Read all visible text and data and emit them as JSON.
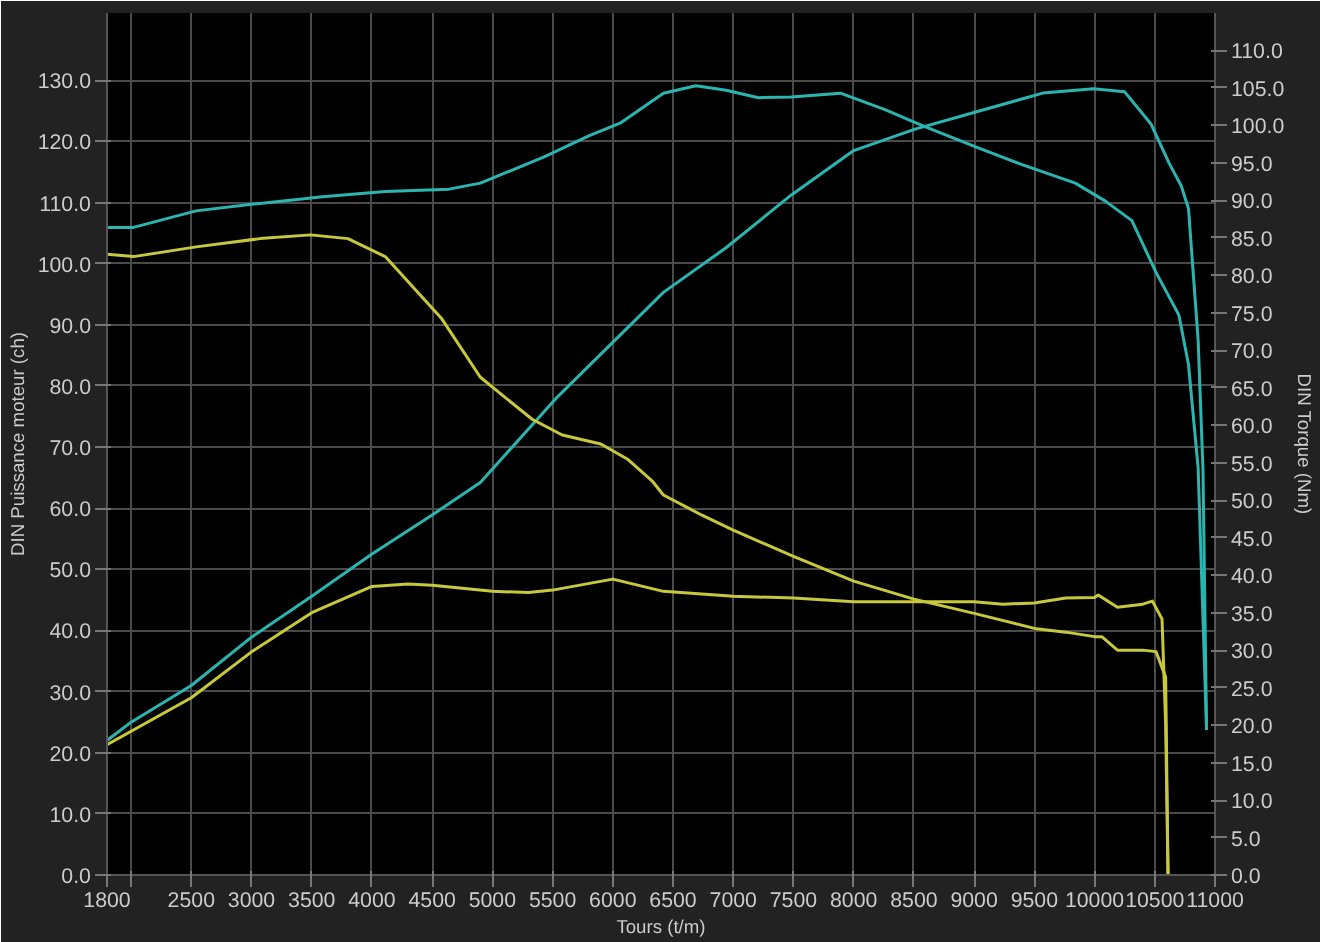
{
  "chart_data": {
    "type": "line",
    "xlabel": "Tours (t/m)",
    "ylabel": "DIN Puissance moteur (ch)",
    "y2label": "DIN Torque (Nm)",
    "xlim": [
      1800,
      11000
    ],
    "ylim": [
      0,
      141
    ],
    "y2lim": [
      0,
      115
    ],
    "xticks": [
      1800,
      {
        "value": 2000,
        "label": null
      },
      2500,
      3000,
      3500,
      4000,
      4500,
      5000,
      5500,
      6000,
      6500,
      7000,
      7500,
      8000,
      8500,
      9000,
      9500,
      10000,
      10500,
      11000
    ],
    "yticks": [
      {
        "value": 0,
        "label": "0.0"
      },
      {
        "value": 10,
        "label": "10.0"
      },
      {
        "value": 20,
        "label": "20.0"
      },
      {
        "value": 30,
        "label": "30.0"
      },
      {
        "value": 40,
        "label": "40.0"
      },
      {
        "value": 50,
        "label": "50.0"
      },
      {
        "value": 60,
        "label": "60.0"
      },
      {
        "value": 70,
        "label": "70.0"
      },
      {
        "value": 80,
        "label": "80.0"
      },
      {
        "value": 90,
        "label": "90.0"
      },
      {
        "value": 100,
        "label": "100.0"
      },
      {
        "value": 110,
        "label": "110.0"
      },
      {
        "value": 120,
        "label": "120.0"
      },
      {
        "value": 130,
        "label": "130.0"
      }
    ],
    "y2ticks": [
      {
        "value": 0,
        "label": "0.0"
      },
      {
        "value": 5,
        "label": "5.0"
      },
      {
        "value": 10,
        "label": "10.0"
      },
      {
        "value": 15,
        "label": "15.0"
      },
      {
        "value": 20,
        "label": "20.0"
      },
      {
        "value": 25,
        "label": "25.0"
      },
      {
        "value": 30,
        "label": "30.0"
      },
      {
        "value": 35,
        "label": "35.0"
      },
      {
        "value": 40,
        "label": "40.0"
      },
      {
        "value": 45,
        "label": "45.0"
      },
      {
        "value": 50,
        "label": "50.0"
      },
      {
        "value": 55,
        "label": "55.0"
      },
      {
        "value": 60,
        "label": "60.0"
      },
      {
        "value": 65,
        "label": "65.0"
      },
      {
        "value": 70,
        "label": "70.0"
      },
      {
        "value": 75,
        "label": "75.0"
      },
      {
        "value": 80,
        "label": "80.0"
      },
      {
        "value": 85,
        "label": "85.0"
      },
      {
        "value": 90,
        "label": "90.0"
      },
      {
        "value": 95,
        "label": "95.0"
      },
      {
        "value": 100,
        "label": "100.0"
      },
      {
        "value": 105,
        "label": "105.0"
      },
      {
        "value": 110,
        "label": "110.0"
      }
    ],
    "grid": true,
    "line_style": "solid",
    "series": [
      {
        "color": "#2ab5b0",
        "x": [
          1800,
          2000,
          2500,
          3000,
          3500,
          4000,
          4500,
          4900,
          5530,
          6420,
          6940,
          7480,
          8000,
          8510,
          9050,
          9570,
          9990,
          10250,
          10470,
          10620,
          10720,
          10780,
          10860,
          10900,
          10930
        ],
        "values": [
          22,
          25,
          31,
          38.9,
          45.6,
          52.5,
          58.9,
          64.2,
          78,
          95.3,
          102.6,
          111.2,
          118.5,
          122,
          125,
          127.9,
          128.6,
          128.1,
          122.8,
          116.4,
          112.7,
          109,
          87.5,
          66.4,
          23.7
        ]
      },
      {
        "color": "#2ab5b0",
        "axis": "y2",
        "x": [
          1800,
          2020,
          2540,
          3070,
          3590,
          4110,
          4640,
          4900,
          5430,
          5800,
          6060,
          6420,
          6690,
          6940,
          7210,
          7480,
          7890,
          8260,
          8580,
          9050,
          9410,
          9840,
          10090,
          10310,
          10510,
          10700,
          10780,
          10860,
          10930
        ],
        "values": [
          86.4,
          86.4,
          88.6,
          89.6,
          90.5,
          91.2,
          91.5,
          92.3,
          95.8,
          98.6,
          100.3,
          104.3,
          105.3,
          104.7,
          103.7,
          103.8,
          104.3,
          102.1,
          99.9,
          96.9,
          94.7,
          92.3,
          89.9,
          87.3,
          80.4,
          74.7,
          68.1,
          54.3,
          19.4
        ]
      },
      {
        "color": "#c8c83a",
        "x": [
          1800,
          2500,
          3000,
          3500,
          4000,
          4300,
          4500,
          5000,
          5300,
          5500,
          6000,
          6420,
          7000,
          7500,
          8000,
          8500,
          9000,
          9240,
          9500,
          9760,
          10000,
          10030,
          10190,
          10400,
          10480,
          10560,
          10590,
          10610
        ],
        "values": [
          21.3,
          29,
          36.5,
          42.9,
          47.2,
          47.6,
          47.4,
          46.4,
          46.2,
          46.6,
          48.4,
          46.4,
          45.6,
          45.3,
          44.7,
          44.7,
          44.7,
          44.3,
          44.5,
          45.3,
          45.4,
          45.8,
          43.8,
          44.3,
          44.8,
          41.9,
          24.9,
          0
        ]
      },
      {
        "color": "#c8c83a",
        "axis": "y2",
        "x": [
          1800,
          2020,
          2540,
          3070,
          3490,
          3800,
          4110,
          4580,
          4900,
          5330,
          5580,
          5900,
          6120,
          6330,
          6420,
          6740,
          7000,
          7500,
          8000,
          8500,
          9000,
          9500,
          9760,
          10000,
          10060,
          10190,
          10400,
          10510,
          10590,
          10610
        ],
        "values": [
          82.8,
          82.5,
          83.8,
          84.9,
          85.4,
          84.9,
          82.5,
          74.2,
          66.4,
          60.8,
          58.7,
          57.5,
          55.5,
          52.5,
          50.7,
          48,
          46,
          42.5,
          39.2,
          36.8,
          34.9,
          32.9,
          32.4,
          31.8,
          31.8,
          30,
          30,
          29.8,
          26.4,
          0
        ]
      }
    ]
  }
}
